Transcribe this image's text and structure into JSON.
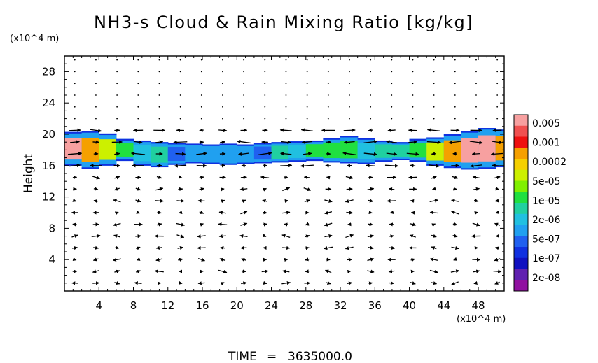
{
  "chart_data": {
    "type": "heatmap",
    "title": "NH3-s Cloud & Rain Mixing Ratio [kg/kg]",
    "ylabel": "Height",
    "y_unit": "(x10^4 m)",
    "x_unit": "(x10^4 m)",
    "time_label": "TIME",
    "time_value": "3635000.0",
    "xlim": [
      0,
      51
    ],
    "ylim": [
      0,
      30
    ],
    "x_ticks": [
      "4",
      "8",
      "12",
      "16",
      "20",
      "24",
      "28",
      "32",
      "36",
      "40",
      "44",
      "48"
    ],
    "y_ticks": [
      "4",
      "8",
      "12",
      "16",
      "20",
      "24",
      "28"
    ],
    "grid": false,
    "colorbar": {
      "labels": [
        "0.005",
        "0.001",
        "0.0002",
        "5e-05",
        "1e-05",
        "2e-06",
        "5e-07",
        "1e-07",
        "2e-08"
      ],
      "colors": [
        "#f7a0a0",
        "#f05050",
        "#ee1010",
        "#f5a000",
        "#f5d000",
        "#ccf000",
        "#80f000",
        "#20e040",
        "#20d0a0",
        "#20c0e0",
        "#20a0f0",
        "#2060f0",
        "#1030e0",
        "#1010c0",
        "#6020b0",
        "#9010a0"
      ]
    },
    "cloud_layer": {
      "bottom_height": [
        16.0,
        15.6,
        16.0,
        16.6,
        16.0,
        15.8,
        16.1,
        16.3,
        16.2,
        16.1,
        16.2,
        16.3,
        16.4,
        16.5,
        16.6,
        16.4,
        16.3,
        16.2,
        16.5,
        16.7,
        16.5,
        16.0,
        15.7,
        15.5,
        15.6,
        15.8
      ],
      "top_height": [
        20.3,
        20.4,
        20.1,
        19.4,
        19.2,
        19.0,
        18.9,
        18.8,
        18.7,
        18.8,
        18.7,
        18.9,
        19.0,
        19.1,
        19.2,
        19.5,
        19.8,
        19.5,
        19.2,
        19.0,
        19.4,
        19.6,
        20.0,
        20.4,
        20.8,
        20.6
      ],
      "peak_mixing_ratio": [
        "0.005",
        "0.001",
        "0.0002",
        "5e-05",
        "1e-05",
        "5e-06",
        "2e-06",
        "1e-06",
        "1e-06",
        "1e-06",
        "1e-06",
        "2e-06",
        "5e-06",
        "1e-05",
        "2e-05",
        "5e-05",
        "2e-05",
        "1e-05",
        "5e-06",
        "5e-06",
        "2e-05",
        "0.0002",
        "0.001",
        "0.005",
        "0.005",
        "0.001"
      ],
      "column_x_start": 0,
      "column_width": 2
    }
  }
}
